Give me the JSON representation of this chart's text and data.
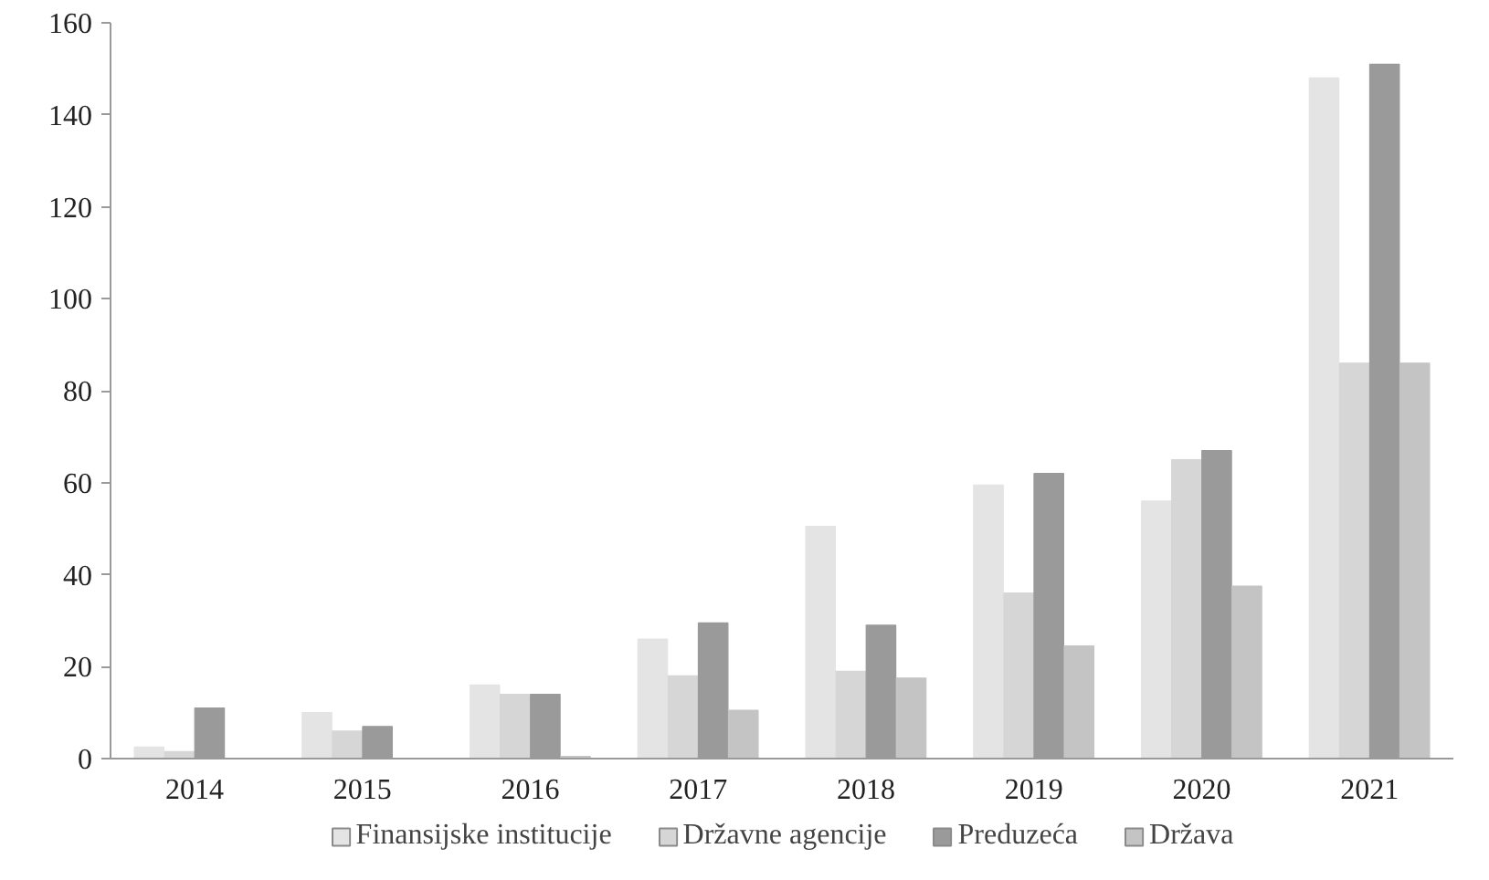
{
  "chart_data": {
    "type": "bar",
    "categories": [
      "2014",
      "2015",
      "2016",
      "2017",
      "2018",
      "2019",
      "2020",
      "2021"
    ],
    "series": [
      {
        "name": "Finansijske institucije",
        "color": "#e4e4e4",
        "values": [
          2.5,
          10,
          16,
          26,
          50.5,
          59.5,
          56,
          148
        ]
      },
      {
        "name": "Državne agencije",
        "color": "#d6d6d6",
        "values": [
          1.5,
          6,
          14,
          18,
          19,
          36,
          65,
          86
        ]
      },
      {
        "name": "Preduzeća",
        "color": "#9a9a9a",
        "values": [
          11,
          7,
          14,
          29.5,
          29,
          62,
          67,
          151
        ]
      },
      {
        "name": "Država",
        "color": "#c4c4c4",
        "values": [
          0,
          0,
          0.5,
          10.5,
          17.5,
          24.5,
          37.5,
          86
        ]
      }
    ],
    "ylim": [
      0,
      160
    ],
    "yticks": [
      0,
      20,
      40,
      60,
      80,
      100,
      120,
      140,
      160
    ],
    "grid": false,
    "legend": "bottom"
  }
}
